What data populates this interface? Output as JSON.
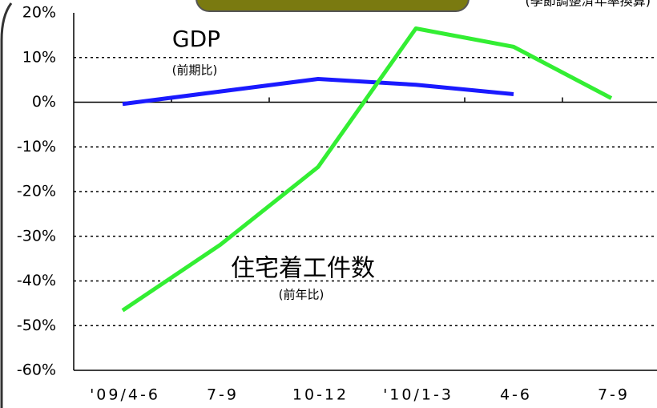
{
  "chart_data": {
    "type": "line",
    "subtitle": "(季節調整済年率換算)",
    "categories": [
      "'09/4-6",
      "7-9",
      "10-12",
      "'10/1-3",
      "4-6",
      "7-9"
    ],
    "series": [
      {
        "name": "GDP",
        "note": "(前期比)",
        "color": "#1a1aff",
        "values": [
          -0.4,
          2.4,
          5.2,
          3.9,
          1.8,
          null
        ]
      },
      {
        "name": "住宅着工件数",
        "note": "(前年比)",
        "color": "#33ee33",
        "values": [
          -46.6,
          -31.9,
          -14.5,
          16.5,
          12.4,
          0.9
        ]
      }
    ],
    "ylim": [
      -60,
      20
    ],
    "yticks": [
      {
        "value": -60,
        "label": "-60%"
      },
      {
        "value": -50,
        "label": "-50%"
      },
      {
        "value": -40,
        "label": "-40%"
      },
      {
        "value": -30,
        "label": "-30%"
      },
      {
        "value": -20,
        "label": "-20%"
      },
      {
        "value": -10,
        "label": "-10%"
      },
      {
        "value": 0,
        "label": "0%"
      },
      {
        "value": 10,
        "label": "10%"
      },
      {
        "value": 20,
        "label": "20%"
      }
    ],
    "grid": true
  }
}
